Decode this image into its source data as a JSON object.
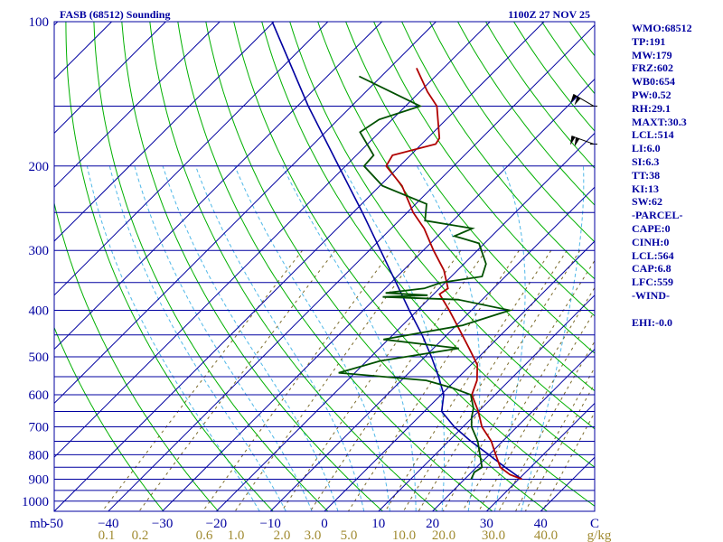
{
  "header": {
    "station": "FASB (68512) Sounding",
    "time": "1100Z 27 NOV 25"
  },
  "stats": [
    "WMO:68512",
    "TP:191",
    "MW:179",
    "FRZ:602",
    "WB0:654",
    "PW:0.52",
    "RH:29.1",
    "MAXT:30.3",
    "LCL:514",
    "LI:6.0",
    "SI:6.3",
    "TT:38",
    "KI:13",
    "SW:62",
    "-PARCEL-",
    "CAPE:0",
    "CINH:0",
    "LCL:564",
    "CAP:6.8",
    "LFC:559",
    "-WIND-",
    "",
    "EHI:-0.0"
  ],
  "colors": {
    "isobar": "#0000a0",
    "isotherm": "#0000a0",
    "dry_adiabat": "#00b000",
    "moist_adiabat": "#50b8e8",
    "mixing_ratio": "#7a6a2a",
    "temperature": "#b00000",
    "dewpoint": "#005000",
    "parcel": "#0000a0",
    "axis_text": "#0000a0",
    "mixing_text": "#a08a30"
  },
  "chart_data": {
    "type": "skew-t log-p",
    "ylabel": "mb",
    "xlabel": "C",
    "mixing_ratio_unit": "g/kg",
    "pressure_range": [
      100,
      1050
    ],
    "temperature_range": [
      -50,
      50
    ],
    "pressure_ticks": [
      100,
      200,
      300,
      400,
      500,
      600,
      700,
      800,
      900,
      1000
    ],
    "pressure_tick_labels": [
      "100",
      "200",
      "300",
      "400",
      "500",
      "600",
      "700",
      "800",
      "900",
      "1000"
    ],
    "temperature_ticks": [
      -50,
      -40,
      -30,
      -20,
      -10,
      0,
      10,
      20,
      30,
      40,
      50
    ],
    "temperature_tick_labels": [
      "-50",
      "−40",
      "−30",
      "−20",
      "−10",
      "0",
      "10",
      "20",
      "30",
      "40",
      "C"
    ],
    "mixing_ratio_labels": [
      "0.1",
      "0.2",
      "0.6",
      "1.0",
      "2.0",
      "3.0",
      "5.0",
      "10.0",
      "20.0",
      "30.0",
      "40.0",
      "g/kg"
    ],
    "isobar_levels": [
      100,
      150,
      200,
      250,
      300,
      350,
      400,
      450,
      500,
      550,
      600,
      650,
      700,
      750,
      800,
      850,
      900,
      950,
      1000,
      1050
    ],
    "isotherm_values": [
      -160,
      -150,
      -140,
      -130,
      -120,
      -110,
      -100,
      -90,
      -80,
      -70,
      -60,
      -50,
      -40,
      -30,
      -20,
      -10,
      0,
      10,
      20,
      30,
      40,
      50
    ],
    "dry_adiabat_thetas_K": [
      240,
      250,
      260,
      270,
      280,
      290,
      300,
      310,
      320,
      330,
      340,
      350,
      360,
      370,
      380,
      390,
      400,
      410,
      420,
      430,
      440,
      450,
      460,
      470,
      480,
      490,
      500,
      510
    ],
    "moist_adiabat_thetaw_C": [
      -15,
      -10,
      -5,
      0,
      5,
      10,
      15,
      20,
      25,
      30,
      35
    ],
    "mixing_ratio_lines_gkg": [
      0.1,
      0.2,
      0.6,
      1.0,
      2.0,
      3.0,
      5.0,
      8.0,
      10.0,
      12.0,
      16.0,
      20.0,
      24.0,
      30.0,
      36.0,
      40.0,
      48.0
    ],
    "temperature": [
      {
        "p": 900,
        "t": 30.6
      },
      {
        "p": 880,
        "t": 27.5
      },
      {
        "p": 850,
        "t": 24.4
      },
      {
        "p": 800,
        "t": 21.2
      },
      {
        "p": 750,
        "t": 17.9
      },
      {
        "p": 700,
        "t": 13.5
      },
      {
        "p": 650,
        "t": 10.0
      },
      {
        "p": 600,
        "t": 5.7
      },
      {
        "p": 560,
        "t": 4.0
      },
      {
        "p": 520,
        "t": 1.2
      },
      {
        "p": 480,
        "t": -3.4
      },
      {
        "p": 440,
        "t": -8.5
      },
      {
        "p": 400,
        "t": -14.1
      },
      {
        "p": 370,
        "t": -18.9
      },
      {
        "p": 360,
        "t": -18.4
      },
      {
        "p": 330,
        "t": -22.5
      },
      {
        "p": 300,
        "t": -28.1
      },
      {
        "p": 270,
        "t": -33.9
      },
      {
        "p": 250,
        "t": -38.9
      },
      {
        "p": 220,
        "t": -45.9
      },
      {
        "p": 200,
        "t": -52.5
      },
      {
        "p": 190,
        "t": -53.3
      },
      {
        "p": 180,
        "t": -47.4
      },
      {
        "p": 175,
        "t": -47.8
      },
      {
        "p": 150,
        "t": -54.2
      },
      {
        "p": 140,
        "t": -58.6
      },
      {
        "p": 125,
        "t": -65.0
      }
    ],
    "dewpoint": [
      {
        "p": 900,
        "t": 21.2
      },
      {
        "p": 870,
        "t": 20.5
      },
      {
        "p": 850,
        "t": 21.0
      },
      {
        "p": 800,
        "t": 18.3
      },
      {
        "p": 750,
        "t": 15.4
      },
      {
        "p": 700,
        "t": 11.6
      },
      {
        "p": 670,
        "t": 9.9
      },
      {
        "p": 640,
        "t": 8.5
      },
      {
        "p": 600,
        "t": 5.5
      },
      {
        "p": 580,
        "t": 0.7
      },
      {
        "p": 560,
        "t": -5.4
      },
      {
        "p": 540,
        "t": -23.0
      },
      {
        "p": 510,
        "t": -17.5
      },
      {
        "p": 480,
        "t": -5.3
      },
      {
        "p": 460,
        "t": -20.9
      },
      {
        "p": 430,
        "t": -8.9
      },
      {
        "p": 400,
        "t": -2.9
      },
      {
        "p": 380,
        "t": -14.4
      },
      {
        "p": 375,
        "t": -28.9
      },
      {
        "p": 372,
        "t": -20.9
      },
      {
        "p": 368,
        "t": -29.1
      },
      {
        "p": 360,
        "t": -22.8
      },
      {
        "p": 350,
        "t": -20.7
      },
      {
        "p": 340,
        "t": -14.3
      },
      {
        "p": 320,
        "t": -15.9
      },
      {
        "p": 290,
        "t": -21.0
      },
      {
        "p": 280,
        "t": -26.9
      },
      {
        "p": 270,
        "t": -25.0
      },
      {
        "p": 260,
        "t": -35.2
      },
      {
        "p": 240,
        "t": -38.0
      },
      {
        "p": 220,
        "t": -49.5
      },
      {
        "p": 200,
        "t": -56.6
      },
      {
        "p": 190,
        "t": -56.8
      },
      {
        "p": 170,
        "t": -63.6
      },
      {
        "p": 160,
        "t": -62.4
      },
      {
        "p": 150,
        "t": -57.3
      },
      {
        "p": 140,
        "t": -65.4
      },
      {
        "p": 130,
        "t": -74.1
      }
    ],
    "parcel": [
      {
        "p": 900,
        "t": 30.6
      },
      {
        "p": 850,
        "t": 25.3
      },
      {
        "p": 800,
        "t": 19.9
      },
      {
        "p": 750,
        "t": 14.1
      },
      {
        "p": 700,
        "t": 8.4
      },
      {
        "p": 650,
        "t": 3.2
      },
      {
        "p": 600,
        "t": 0.5
      },
      {
        "p": 550,
        "t": -3.8
      },
      {
        "p": 500,
        "t": -8.8
      },
      {
        "p": 450,
        "t": -14.6
      },
      {
        "p": 400,
        "t": -21.5
      },
      {
        "p": 350,
        "t": -29.1
      },
      {
        "p": 300,
        "t": -37.9
      },
      {
        "p": 250,
        "t": -48.3
      },
      {
        "p": 200,
        "t": -61.3
      },
      {
        "p": 150,
        "t": -78.0
      },
      {
        "p": 100,
        "t": -100.3
      }
    ],
    "wind_barbs": [
      {
        "p": 150,
        "direction_deg": 300,
        "speed_kt": 15
      },
      {
        "p": 180,
        "direction_deg": 290,
        "speed_kt": 20
      }
    ]
  }
}
